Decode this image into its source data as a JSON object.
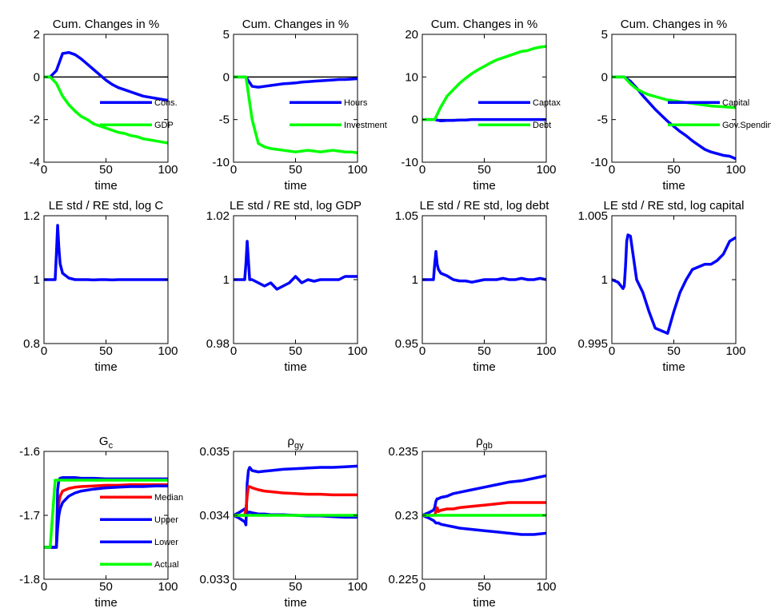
{
  "chart_data": [
    {
      "type": "line",
      "title": "Cum. Changes in %",
      "xlabel": "time",
      "xlim": [
        0,
        100
      ],
      "xticks": [
        0,
        50,
        100
      ],
      "ylim": [
        -4,
        2
      ],
      "yticks": [
        -4,
        -2,
        0,
        2
      ],
      "hline": 0,
      "legend": "right",
      "x": [
        0,
        5,
        10,
        15,
        20,
        25,
        30,
        35,
        40,
        45,
        50,
        55,
        60,
        65,
        70,
        75,
        80,
        85,
        90,
        95,
        100
      ],
      "series": [
        {
          "name": "Cons.",
          "color": "#0000ff",
          "values": [
            0,
            0,
            0.3,
            1.1,
            1.15,
            1.05,
            0.85,
            0.6,
            0.35,
            0.1,
            -0.15,
            -0.35,
            -0.5,
            -0.6,
            -0.7,
            -0.8,
            -0.9,
            -0.95,
            -1.0,
            -1.05,
            -1.1
          ]
        },
        {
          "name": "GDP",
          "color": "#00ff00",
          "values": [
            0,
            0,
            -0.3,
            -0.9,
            -1.3,
            -1.6,
            -1.85,
            -2.0,
            -2.2,
            -2.3,
            -2.4,
            -2.5,
            -2.6,
            -2.65,
            -2.75,
            -2.8,
            -2.9,
            -2.95,
            -3.0,
            -3.05,
            -3.1
          ]
        }
      ]
    },
    {
      "type": "line",
      "title": "Cum. Changes in %",
      "xlabel": "time",
      "xlim": [
        0,
        100
      ],
      "xticks": [
        0,
        50,
        100
      ],
      "ylim": [
        -10,
        5
      ],
      "yticks": [
        -10,
        -5,
        0,
        5
      ],
      "hline": 0,
      "legend": "right",
      "x": [
        0,
        5,
        10,
        15,
        20,
        25,
        30,
        35,
        40,
        45,
        50,
        55,
        60,
        65,
        70,
        75,
        80,
        85,
        90,
        95,
        100
      ],
      "series": [
        {
          "name": "Hours",
          "color": "#0000ff",
          "values": [
            0,
            0,
            0,
            -1.1,
            -1.2,
            -1.1,
            -1.0,
            -0.9,
            -0.8,
            -0.75,
            -0.7,
            -0.6,
            -0.55,
            -0.5,
            -0.45,
            -0.4,
            -0.35,
            -0.3,
            -0.3,
            -0.25,
            -0.2
          ]
        },
        {
          "name": "Investment",
          "color": "#00ff00",
          "values": [
            0,
            0,
            0,
            -5,
            -7.8,
            -8.2,
            -8.4,
            -8.5,
            -8.6,
            -8.7,
            -8.8,
            -8.7,
            -8.6,
            -8.7,
            -8.8,
            -8.7,
            -8.6,
            -8.7,
            -8.8,
            -8.8,
            -8.9
          ]
        }
      ]
    },
    {
      "type": "line",
      "title": "Cum. Changes in %",
      "xlabel": "time",
      "xlim": [
        0,
        100
      ],
      "xticks": [
        0,
        50,
        100
      ],
      "ylim": [
        -10,
        20
      ],
      "yticks": [
        -10,
        0,
        10,
        20
      ],
      "hline": 0,
      "legend": "right",
      "x": [
        0,
        5,
        10,
        15,
        20,
        25,
        30,
        35,
        40,
        45,
        50,
        55,
        60,
        65,
        70,
        75,
        80,
        85,
        90,
        95,
        100
      ],
      "series": [
        {
          "name": "Captax",
          "color": "#0000ff",
          "values": [
            0,
            0,
            0,
            -0.3,
            -0.2,
            -0.2,
            -0.1,
            -0.1,
            0,
            0,
            0,
            0,
            0,
            0,
            0,
            0,
            0,
            0,
            0,
            0,
            0
          ]
        },
        {
          "name": "Debt",
          "color": "#00ff00",
          "values": [
            0,
            0,
            0,
            3,
            5.5,
            7,
            8.5,
            9.7,
            10.8,
            11.7,
            12.5,
            13.3,
            14,
            14.5,
            15,
            15.5,
            16,
            16.2,
            16.7,
            17,
            17.2
          ]
        }
      ]
    },
    {
      "type": "line",
      "title": "Cum. Changes in %",
      "xlabel": "time",
      "xlim": [
        0,
        100
      ],
      "xticks": [
        0,
        50,
        100
      ],
      "ylim": [
        -10,
        5
      ],
      "yticks": [
        -10,
        -5,
        0,
        5
      ],
      "hline": 0,
      "legend": "right",
      "x": [
        0,
        5,
        10,
        15,
        20,
        25,
        30,
        35,
        40,
        45,
        50,
        55,
        60,
        65,
        70,
        75,
        80,
        85,
        90,
        95,
        100
      ],
      "series": [
        {
          "name": "Capital",
          "color": "#0000ff",
          "values": [
            0,
            0,
            0,
            -0.5,
            -1.3,
            -2.2,
            -3,
            -3.8,
            -4.5,
            -5.2,
            -5.8,
            -6.4,
            -6.9,
            -7.5,
            -8,
            -8.5,
            -8.8,
            -9,
            -9.2,
            -9.3,
            -9.6
          ]
        },
        {
          "name": "Gov.Spending",
          "color": "#00ff00",
          "values": [
            0,
            0,
            0,
            -0.8,
            -1.4,
            -1.8,
            -2.1,
            -2.3,
            -2.5,
            -2.7,
            -2.8,
            -2.9,
            -3.0,
            -3.1,
            -3.2,
            -3.3,
            -3.4,
            -3.45,
            -3.5,
            -3.55,
            -3.6
          ]
        }
      ]
    },
    {
      "type": "line",
      "title": "LE std / RE std, log C",
      "xlabel": "time",
      "xlim": [
        0,
        100
      ],
      "xticks": [
        0,
        50,
        100
      ],
      "ylim": [
        0.8,
        1.2
      ],
      "yticks": [
        0.8,
        1,
        1.2
      ],
      "x": [
        0,
        5,
        9,
        10,
        11,
        12,
        13,
        15,
        20,
        25,
        30,
        35,
        40,
        45,
        50,
        55,
        60,
        65,
        70,
        75,
        80,
        85,
        90,
        95,
        100
      ],
      "series": [
        {
          "color": "#0000ff",
          "values": [
            1,
            1,
            1,
            1.08,
            1.17,
            1.1,
            1.05,
            1.02,
            1.005,
            1.0,
            1.0,
            1.0,
            0.999,
            1.0,
            1.0,
            0.999,
            1.0,
            1.0,
            1.0,
            1.0,
            1.0,
            1.0,
            1.0,
            1.0,
            1.0
          ]
        }
      ]
    },
    {
      "type": "line",
      "title": "LE std / RE std, log GDP",
      "xlabel": "time",
      "xlim": [
        0,
        100
      ],
      "xticks": [
        0,
        50,
        100
      ],
      "ylim": [
        0.98,
        1.02
      ],
      "yticks": [
        0.98,
        1,
        1.02
      ],
      "x": [
        0,
        5,
        9,
        10,
        11,
        12,
        13,
        15,
        20,
        25,
        30,
        35,
        40,
        45,
        50,
        55,
        60,
        65,
        70,
        75,
        80,
        85,
        90,
        95,
        100
      ],
      "series": [
        {
          "color": "#0000ff",
          "values": [
            1,
            1,
            1,
            1.005,
            1.012,
            1.006,
            1.0,
            1.0,
            0.999,
            0.998,
            0.999,
            0.997,
            0.998,
            0.999,
            1.001,
            0.999,
            1.0,
            0.9995,
            1.0,
            1.0,
            1.0,
            1.0,
            1.001,
            1.001,
            1.001
          ]
        }
      ]
    },
    {
      "type": "line",
      "title": "LE std / RE std, log debt",
      "xlabel": "time",
      "xlim": [
        0,
        100
      ],
      "xticks": [
        0,
        50,
        100
      ],
      "ylim": [
        0.95,
        1.05
      ],
      "yticks": [
        0.95,
        1,
        1.05
      ],
      "x": [
        0,
        5,
        9,
        10,
        11,
        12,
        13,
        15,
        20,
        25,
        30,
        35,
        40,
        45,
        50,
        55,
        60,
        65,
        70,
        75,
        80,
        85,
        90,
        95,
        100
      ],
      "series": [
        {
          "color": "#0000ff",
          "values": [
            1,
            1,
            1,
            1.012,
            1.022,
            1.012,
            1.008,
            1.005,
            1.003,
            1.0,
            0.999,
            0.999,
            0.998,
            0.999,
            1.0,
            1.0,
            1.0,
            1.001,
            1.0,
            1.0,
            1.001,
            1.0,
            1.0,
            1.001,
            1.0
          ]
        }
      ]
    },
    {
      "type": "line",
      "title": "LE std / RE std, log capital",
      "xlabel": "time",
      "xlim": [
        0,
        100
      ],
      "xticks": [
        0,
        50,
        100
      ],
      "ylim": [
        0.995,
        1.005
      ],
      "yticks": [
        0.995,
        1,
        1.005
      ],
      "x": [
        0,
        5,
        9,
        10,
        11,
        12,
        13,
        15,
        20,
        25,
        30,
        35,
        40,
        45,
        50,
        55,
        60,
        65,
        70,
        75,
        80,
        85,
        90,
        95,
        100
      ],
      "series": [
        {
          "color": "#0000ff",
          "values": [
            1.0,
            0.9998,
            0.9993,
            0.9995,
            1.001,
            1.003,
            1.0035,
            1.0034,
            1.0,
            0.999,
            0.9975,
            0.9962,
            0.996,
            0.9958,
            0.9975,
            0.999,
            1.0,
            1.0008,
            1.001,
            1.0012,
            1.0012,
            1.0015,
            1.002,
            1.003,
            1.0033
          ]
        }
      ]
    },
    {
      "type": "line",
      "title": "G",
      "title_subscript": "c",
      "xlabel": "time",
      "xlim": [
        0,
        100
      ],
      "xticks": [
        0,
        50,
        100
      ],
      "ylim": [
        -1.8,
        -1.6
      ],
      "yticks": [
        -1.8,
        -1.7,
        -1.6
      ],
      "legend": "right",
      "x": [
        0,
        5,
        9,
        10,
        11,
        12,
        13,
        15,
        20,
        25,
        30,
        40,
        50,
        60,
        70,
        80,
        90,
        100
      ],
      "series": [
        {
          "name": "Median",
          "color": "#ff0000",
          "values": [
            -1.75,
            -1.75,
            -1.75,
            -1.75,
            -1.7,
            -1.68,
            -1.67,
            -1.662,
            -1.658,
            -1.656,
            -1.655,
            -1.654,
            -1.653,
            -1.653,
            -1.652,
            -1.652,
            -1.652,
            -1.652
          ]
        },
        {
          "name": "Upper",
          "color": "#0000ff",
          "values": [
            -1.75,
            -1.75,
            -1.75,
            -1.75,
            -1.66,
            -1.645,
            -1.642,
            -1.641,
            -1.641,
            -1.641,
            -1.642,
            -1.642,
            -1.643,
            -1.643,
            -1.643,
            -1.643,
            -1.643,
            -1.643
          ]
        },
        {
          "name": "Lower",
          "color": "#0000ff",
          "values": [
            -1.75,
            -1.75,
            -1.75,
            -1.75,
            -1.72,
            -1.7,
            -1.69,
            -1.68,
            -1.67,
            -1.665,
            -1.662,
            -1.659,
            -1.657,
            -1.656,
            -1.655,
            -1.655,
            -1.654,
            -1.654
          ]
        },
        {
          "name": "Actual",
          "color": "#00ff00",
          "values": [
            -1.75,
            -1.75,
            -1.645,
            -1.645,
            -1.645,
            -1.645,
            -1.645,
            -1.645,
            -1.645,
            -1.645,
            -1.645,
            -1.645,
            -1.645,
            -1.645,
            -1.645,
            -1.645,
            -1.645,
            -1.645
          ]
        }
      ]
    },
    {
      "type": "line",
      "title": "ρ",
      "title_subscript": "gy",
      "xlabel": "time",
      "xlim": [
        0,
        100
      ],
      "xticks": [
        0,
        50,
        100
      ],
      "ylim": [
        0.033,
        0.035
      ],
      "yticks": [
        0.033,
        0.034,
        0.035
      ],
      "x": [
        0,
        5,
        9,
        10,
        11,
        12,
        13,
        15,
        20,
        25,
        30,
        40,
        50,
        60,
        70,
        80,
        90,
        100
      ],
      "series": [
        {
          "color": "#0000ff",
          "values": [
            0.034,
            0.03395,
            0.0339,
            0.03385,
            0.0345,
            0.0347,
            0.03475,
            0.0347,
            0.03468,
            0.03469,
            0.0347,
            0.03472,
            0.03473,
            0.03474,
            0.03475,
            0.03475,
            0.03476,
            0.03477
          ]
        },
        {
          "color": "#0000ff",
          "values": [
            0.034,
            0.03405,
            0.0341,
            0.0341,
            0.034,
            0.03405,
            0.03405,
            0.03404,
            0.03402,
            0.03402,
            0.03401,
            0.03401,
            0.034,
            0.03399,
            0.03399,
            0.03398,
            0.03397,
            0.03397
          ]
        },
        {
          "color": "#ff0000",
          "values": [
            0.034,
            0.034,
            0.034,
            0.0341,
            0.0343,
            0.03445,
            0.03445,
            0.03443,
            0.0344,
            0.03438,
            0.03437,
            0.03435,
            0.03434,
            0.03433,
            0.03433,
            0.03432,
            0.03432,
            0.03432
          ]
        },
        {
          "color": "#00ff00",
          "values": [
            0.034,
            0.034,
            0.034,
            0.034,
            0.034,
            0.034,
            0.034,
            0.034,
            0.034,
            0.034,
            0.034,
            0.034,
            0.034,
            0.034,
            0.034,
            0.034,
            0.034,
            0.034
          ]
        }
      ]
    },
    {
      "type": "line",
      "title": "ρ",
      "title_subscript": "gb",
      "xlabel": "time",
      "xlim": [
        0,
        100
      ],
      "xticks": [
        0,
        50,
        100
      ],
      "ylim": [
        0.225,
        0.235
      ],
      "yticks": [
        0.225,
        0.23,
        0.235
      ],
      "x": [
        0,
        5,
        9,
        10,
        11,
        12,
        13,
        15,
        20,
        25,
        30,
        40,
        50,
        60,
        70,
        80,
        90,
        100
      ],
      "series": [
        {
          "color": "#0000ff",
          "values": [
            0.23,
            0.2302,
            0.2304,
            0.2306,
            0.2311,
            0.2313,
            0.2313,
            0.2314,
            0.2315,
            0.2317,
            0.2318,
            0.232,
            0.2322,
            0.2324,
            0.2326,
            0.2327,
            0.2329,
            0.2331
          ]
        },
        {
          "color": "#0000ff",
          "values": [
            0.23,
            0.2298,
            0.2296,
            0.2295,
            0.2294,
            0.2294,
            0.2294,
            0.2293,
            0.2292,
            0.2291,
            0.229,
            0.2289,
            0.2288,
            0.2287,
            0.2286,
            0.2285,
            0.2285,
            0.2286
          ]
        },
        {
          "color": "#ff0000",
          "values": [
            0.23,
            0.23,
            0.23,
            0.23,
            0.2303,
            0.2306,
            0.2303,
            0.2304,
            0.2305,
            0.2305,
            0.2306,
            0.2307,
            0.2308,
            0.2309,
            0.231,
            0.231,
            0.231,
            0.231
          ]
        },
        {
          "color": "#00ff00",
          "values": [
            0.23,
            0.23,
            0.23,
            0.23,
            0.23,
            0.23,
            0.23,
            0.23,
            0.23,
            0.23,
            0.23,
            0.23,
            0.23,
            0.23,
            0.23,
            0.23,
            0.23,
            0.23
          ]
        }
      ]
    }
  ]
}
